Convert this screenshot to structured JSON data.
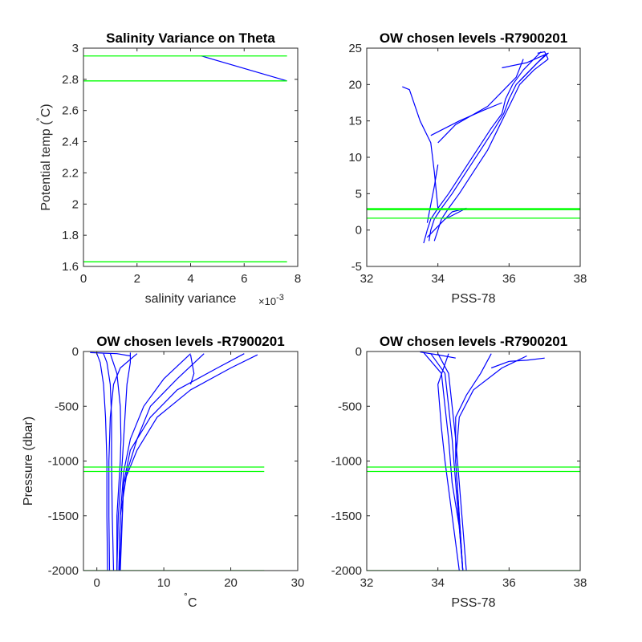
{
  "colors": {
    "profile": "#0000ff",
    "level": "#00ff00",
    "axis": "#262626",
    "background": "#ffffff"
  },
  "chart_data": [
    {
      "id": "p1",
      "type": "line",
      "title": "Salinity Variance on Theta",
      "xlabel": "salinity variance",
      "x_multiplier": "×10",
      "x_multiplier_exp": "-3",
      "ylabel_prefix": "Potential temp (",
      "ylabel_degree": "˚",
      "ylabel_suffix": "C)",
      "xlim": [
        0,
        8
      ],
      "ylim": [
        1.6,
        3
      ],
      "xticks": [
        0,
        2,
        4,
        6,
        8
      ],
      "xtick_labels": [
        "0",
        "2",
        "4",
        "6",
        "8"
      ],
      "yticks": [
        1.6,
        1.8,
        2,
        2.2,
        2.4,
        2.6,
        2.8,
        3
      ],
      "ytick_labels": [
        "1.6",
        "1.8",
        "2",
        "2.2",
        "2.4",
        "2.6",
        "2.8",
        "3"
      ],
      "series": [
        {
          "points": [
            [
              4.4,
              2.95
            ],
            [
              7.6,
              2.79
            ]
          ]
        }
      ],
      "level_lines": [
        {
          "y": 2.95,
          "x_range": [
            0,
            7.6
          ]
        },
        {
          "y": 2.79,
          "x_range": [
            0,
            7.6
          ]
        },
        {
          "y": 1.63,
          "x_range": [
            0,
            7.6
          ]
        }
      ]
    },
    {
      "id": "p2",
      "type": "line",
      "title": "OW chosen levels -R7900201",
      "xlabel": "PSS-78",
      "ylabel": "",
      "xlim": [
        32,
        38
      ],
      "ylim": [
        -5,
        25
      ],
      "xticks": [
        32,
        34,
        36,
        38
      ],
      "xtick_labels": [
        "32",
        "34",
        "36",
        "38"
      ],
      "yticks": [
        -5,
        0,
        5,
        10,
        15,
        20,
        25
      ],
      "ytick_labels": [
        "-5",
        "0",
        "5",
        "10",
        "15",
        "20",
        "25"
      ],
      "series": [
        {
          "points": [
            [
              33.75,
              -1.5
            ],
            [
              33.8,
              0
            ],
            [
              33.9,
              1.5
            ],
            [
              34.1,
              3
            ],
            [
              34.4,
              5
            ],
            [
              34.8,
              8
            ],
            [
              35.2,
              11
            ],
            [
              35.6,
              14
            ],
            [
              35.85,
              16
            ],
            [
              36.0,
              18
            ],
            [
              36.2,
              20
            ],
            [
              36.6,
              22
            ],
            [
              37.0,
              24
            ]
          ]
        },
        {
          "points": [
            [
              33.6,
              -1.8
            ],
            [
              33.7,
              0
            ],
            [
              33.8,
              1.5
            ],
            [
              34.0,
              3
            ],
            [
              34.3,
              5
            ],
            [
              34.7,
              8
            ],
            [
              35.1,
              11
            ],
            [
              35.5,
              14
            ],
            [
              35.8,
              16
            ],
            [
              35.9,
              18
            ],
            [
              36.1,
              20
            ],
            [
              36.4,
              22
            ],
            [
              36.9,
              24.5
            ]
          ]
        },
        {
          "points": [
            [
              33.9,
              -1.5
            ],
            [
              34.0,
              0
            ],
            [
              34.1,
              1.5
            ],
            [
              34.3,
              3
            ],
            [
              34.6,
              5
            ],
            [
              35.0,
              8
            ],
            [
              35.4,
              11
            ],
            [
              35.7,
              14
            ],
            [
              35.9,
              16
            ],
            [
              36.1,
              18
            ],
            [
              36.3,
              20
            ],
            [
              36.7,
              22
            ],
            [
              37.1,
              23.5
            ]
          ]
        },
        {
          "points": [
            [
              33.0,
              19.7
            ],
            [
              33.2,
              19.3
            ],
            [
              33.5,
              15.0
            ],
            [
              33.8,
              12.0
            ],
            [
              33.9,
              8.0
            ],
            [
              34.0,
              3.0
            ]
          ]
        },
        {
          "points": [
            [
              33.7,
              -1.0
            ],
            [
              34.2,
              1.5
            ],
            [
              34.8,
              3.0
            ],
            [
              34.4,
              2.5
            ],
            [
              34.0,
              0.5
            ]
          ]
        },
        {
          "points": [
            [
              33.8,
              13.0
            ],
            [
              34.6,
              15.0
            ],
            [
              35.3,
              16.5
            ],
            [
              35.8,
              17.5
            ]
          ]
        },
        {
          "points": [
            [
              34.0,
              12.0
            ],
            [
              34.5,
              14.5
            ],
            [
              35.4,
              17.0
            ],
            [
              36.2,
              21.0
            ],
            [
              36.4,
              23.5
            ]
          ]
        },
        {
          "points": [
            [
              35.8,
              22.3
            ],
            [
              36.5,
              23.0
            ],
            [
              37.1,
              24.3
            ],
            [
              36.8,
              23.0
            ],
            [
              36.3,
              20.5
            ]
          ]
        },
        {
          "points": [
            [
              33.7,
              1.0
            ],
            [
              33.9,
              6.0
            ],
            [
              34.0,
              9.0
            ]
          ]
        },
        {
          "points": [
            [
              36.8,
              24.3
            ],
            [
              37.0,
              24.5
            ],
            [
              37.1,
              23.5
            ]
          ]
        }
      ],
      "level_lines": [
        {
          "y": 2.95,
          "x_range": [
            32,
            38
          ]
        },
        {
          "y": 2.79,
          "x_range": [
            32,
            38
          ]
        },
        {
          "y": 1.63,
          "x_range": [
            32,
            38
          ]
        }
      ]
    },
    {
      "id": "p3",
      "type": "line",
      "title": "OW chosen levels -R7900201",
      "xlabel": "C",
      "xlabel_degree": "˚",
      "ylabel": "Pressure (dbar)",
      "xlim": [
        -2,
        30
      ],
      "ylim": [
        -2000,
        0
      ],
      "xticks": [
        0,
        10,
        20,
        30
      ],
      "xtick_labels": [
        "0",
        "10",
        "20",
        "30"
      ],
      "yticks": [
        -2000,
        -1500,
        -1000,
        -500,
        0
      ],
      "ytick_labels": [
        "-2000",
        "-1500",
        "-1000",
        "-500",
        "0"
      ],
      "series": [
        {
          "points": [
            [
              0,
              -20
            ],
            [
              0.5,
              -100
            ],
            [
              1.0,
              -300
            ],
            [
              1.3,
              -600
            ],
            [
              1.5,
              -1000
            ],
            [
              1.5,
              -1500
            ],
            [
              1.6,
              -2000
            ]
          ]
        },
        {
          "points": [
            [
              1.0,
              -20
            ],
            [
              1.5,
              -100
            ],
            [
              2.0,
              -300
            ],
            [
              2.2,
              -600
            ],
            [
              2.2,
              -1000
            ],
            [
              2.3,
              -1500
            ],
            [
              2.5,
              -2000
            ]
          ]
        },
        {
          "points": [
            [
              2,
              -20
            ],
            [
              3.0,
              -200
            ],
            [
              3.5,
              -500
            ],
            [
              3.6,
              -800
            ],
            [
              3.5,
              -1000
            ],
            [
              3.0,
              -1500
            ],
            [
              3.0,
              -2000
            ]
          ]
        },
        {
          "points": [
            [
              5,
              -10
            ],
            [
              5.0,
              -100
            ],
            [
              4.5,
              -300
            ],
            [
              4.2,
              -600
            ],
            [
              3.8,
              -1000
            ],
            [
              3.2,
              -1500
            ],
            [
              3.0,
              -2000
            ]
          ]
        },
        {
          "points": [
            [
              14,
              -20
            ],
            [
              10,
              -250
            ],
            [
              7,
              -500
            ],
            [
              5,
              -800
            ],
            [
              4,
              -1100
            ],
            [
              3.5,
              -1500
            ],
            [
              3.3,
              -2000
            ]
          ]
        },
        {
          "points": [
            [
              16,
              -20
            ],
            [
              12,
              -250
            ],
            [
              8,
              -500
            ],
            [
              6,
              -800
            ],
            [
              4.5,
              -1100
            ],
            [
              3.5,
              -1500
            ],
            [
              3.3,
              -2000
            ]
          ]
        },
        {
          "points": [
            [
              22,
              -20
            ],
            [
              18,
              -150
            ],
            [
              12,
              -350
            ],
            [
              8,
              -600
            ],
            [
              5,
              -900
            ],
            [
              4,
              -1200
            ],
            [
              3.5,
              -2000
            ]
          ]
        },
        {
          "points": [
            [
              24,
              -30
            ],
            [
              20,
              -150
            ],
            [
              14,
              -350
            ],
            [
              9,
              -600
            ],
            [
              6,
              -900
            ],
            [
              4,
              -1200
            ],
            [
              3.4,
              -2000
            ]
          ]
        },
        {
          "points": [
            [
              -1,
              -10
            ],
            [
              3,
              -20
            ],
            [
              5,
              -40
            ]
          ]
        },
        {
          "points": [
            [
              14,
              -30
            ],
            [
              14.5,
              -200
            ],
            [
              14.0,
              -300
            ]
          ]
        },
        {
          "points": [
            [
              6,
              -20
            ],
            [
              3.5,
              -150
            ],
            [
              2.5,
              -300
            ],
            [
              2.0,
              -600
            ],
            [
              1.8,
              -1000
            ],
            [
              1.8,
              -1500
            ],
            [
              1.9,
              -2000
            ]
          ]
        }
      ],
      "level_lines": [
        {
          "y": -1055,
          "x_range": [
            -2,
            25
          ]
        },
        {
          "y": -1095,
          "x_range": [
            -2,
            25
          ]
        },
        {
          "y": -2000,
          "x_range": [
            -2,
            25
          ]
        }
      ]
    },
    {
      "id": "p4",
      "type": "line",
      "title": "OW chosen levels -R7900201",
      "xlabel": "PSS-78",
      "ylabel": "",
      "xlim": [
        32,
        38
      ],
      "ylim": [
        -2000,
        0
      ],
      "xticks": [
        32,
        34,
        36,
        38
      ],
      "xtick_labels": [
        "32",
        "34",
        "36",
        "38"
      ],
      "yticks": [
        -2000,
        -1500,
        -1000,
        -500,
        0
      ],
      "ytick_labels": [
        "-2000",
        "-1500",
        "-1000",
        "-500",
        "0"
      ],
      "series": [
        {
          "points": [
            [
              33.8,
              -20
            ],
            [
              34.2,
              -200
            ],
            [
              34.3,
              -500
            ],
            [
              34.4,
              -800
            ],
            [
              34.5,
              -1200
            ],
            [
              34.6,
              -1600
            ],
            [
              34.7,
              -2000
            ]
          ]
        },
        {
          "points": [
            [
              34.0,
              -20
            ],
            [
              34.3,
              -200
            ],
            [
              34.4,
              -500
            ],
            [
              34.5,
              -800
            ],
            [
              34.6,
              -1200
            ],
            [
              34.7,
              -1600
            ],
            [
              34.8,
              -2000
            ]
          ]
        },
        {
          "points": [
            [
              35.5,
              -20
            ],
            [
              35.2,
              -200
            ],
            [
              34.8,
              -400
            ],
            [
              34.5,
              -600
            ],
            [
              34.5,
              -1000
            ],
            [
              34.6,
              -1500
            ],
            [
              34.7,
              -2000
            ]
          ]
        },
        {
          "points": [
            [
              36.5,
              -40
            ],
            [
              35.8,
              -150
            ],
            [
              35.0,
              -350
            ],
            [
              34.6,
              -600
            ],
            [
              34.5,
              -1000
            ],
            [
              34.6,
              -1500
            ],
            [
              34.7,
              -2000
            ]
          ]
        },
        {
          "points": [
            [
              34.3,
              -20
            ],
            [
              34.0,
              -300
            ],
            [
              34.1,
              -700
            ],
            [
              34.2,
              -1000
            ],
            [
              34.4,
              -1500
            ],
            [
              34.6,
              -2000
            ]
          ]
        },
        {
          "points": [
            [
              37.0,
              -60
            ],
            [
              36.5,
              -80
            ],
            [
              36.0,
              -90
            ],
            [
              35.5,
              -150
            ]
          ]
        },
        {
          "points": [
            [
              33.5,
              -5
            ],
            [
              34.0,
              -30
            ],
            [
              34.5,
              -60
            ]
          ]
        },
        {
          "points": [
            [
              33.6,
              -10
            ],
            [
              34.1,
              -200
            ],
            [
              34.2,
              -500
            ],
            [
              34.3,
              -800
            ],
            [
              34.4,
              -1200
            ],
            [
              34.6,
              -1600
            ],
            [
              34.7,
              -2000
            ]
          ]
        }
      ],
      "level_lines": [
        {
          "y": -1055,
          "x_range": [
            32,
            38
          ]
        },
        {
          "y": -1095,
          "x_range": [
            32,
            38
          ]
        },
        {
          "y": -2000,
          "x_range": [
            32,
            38
          ]
        }
      ]
    }
  ]
}
